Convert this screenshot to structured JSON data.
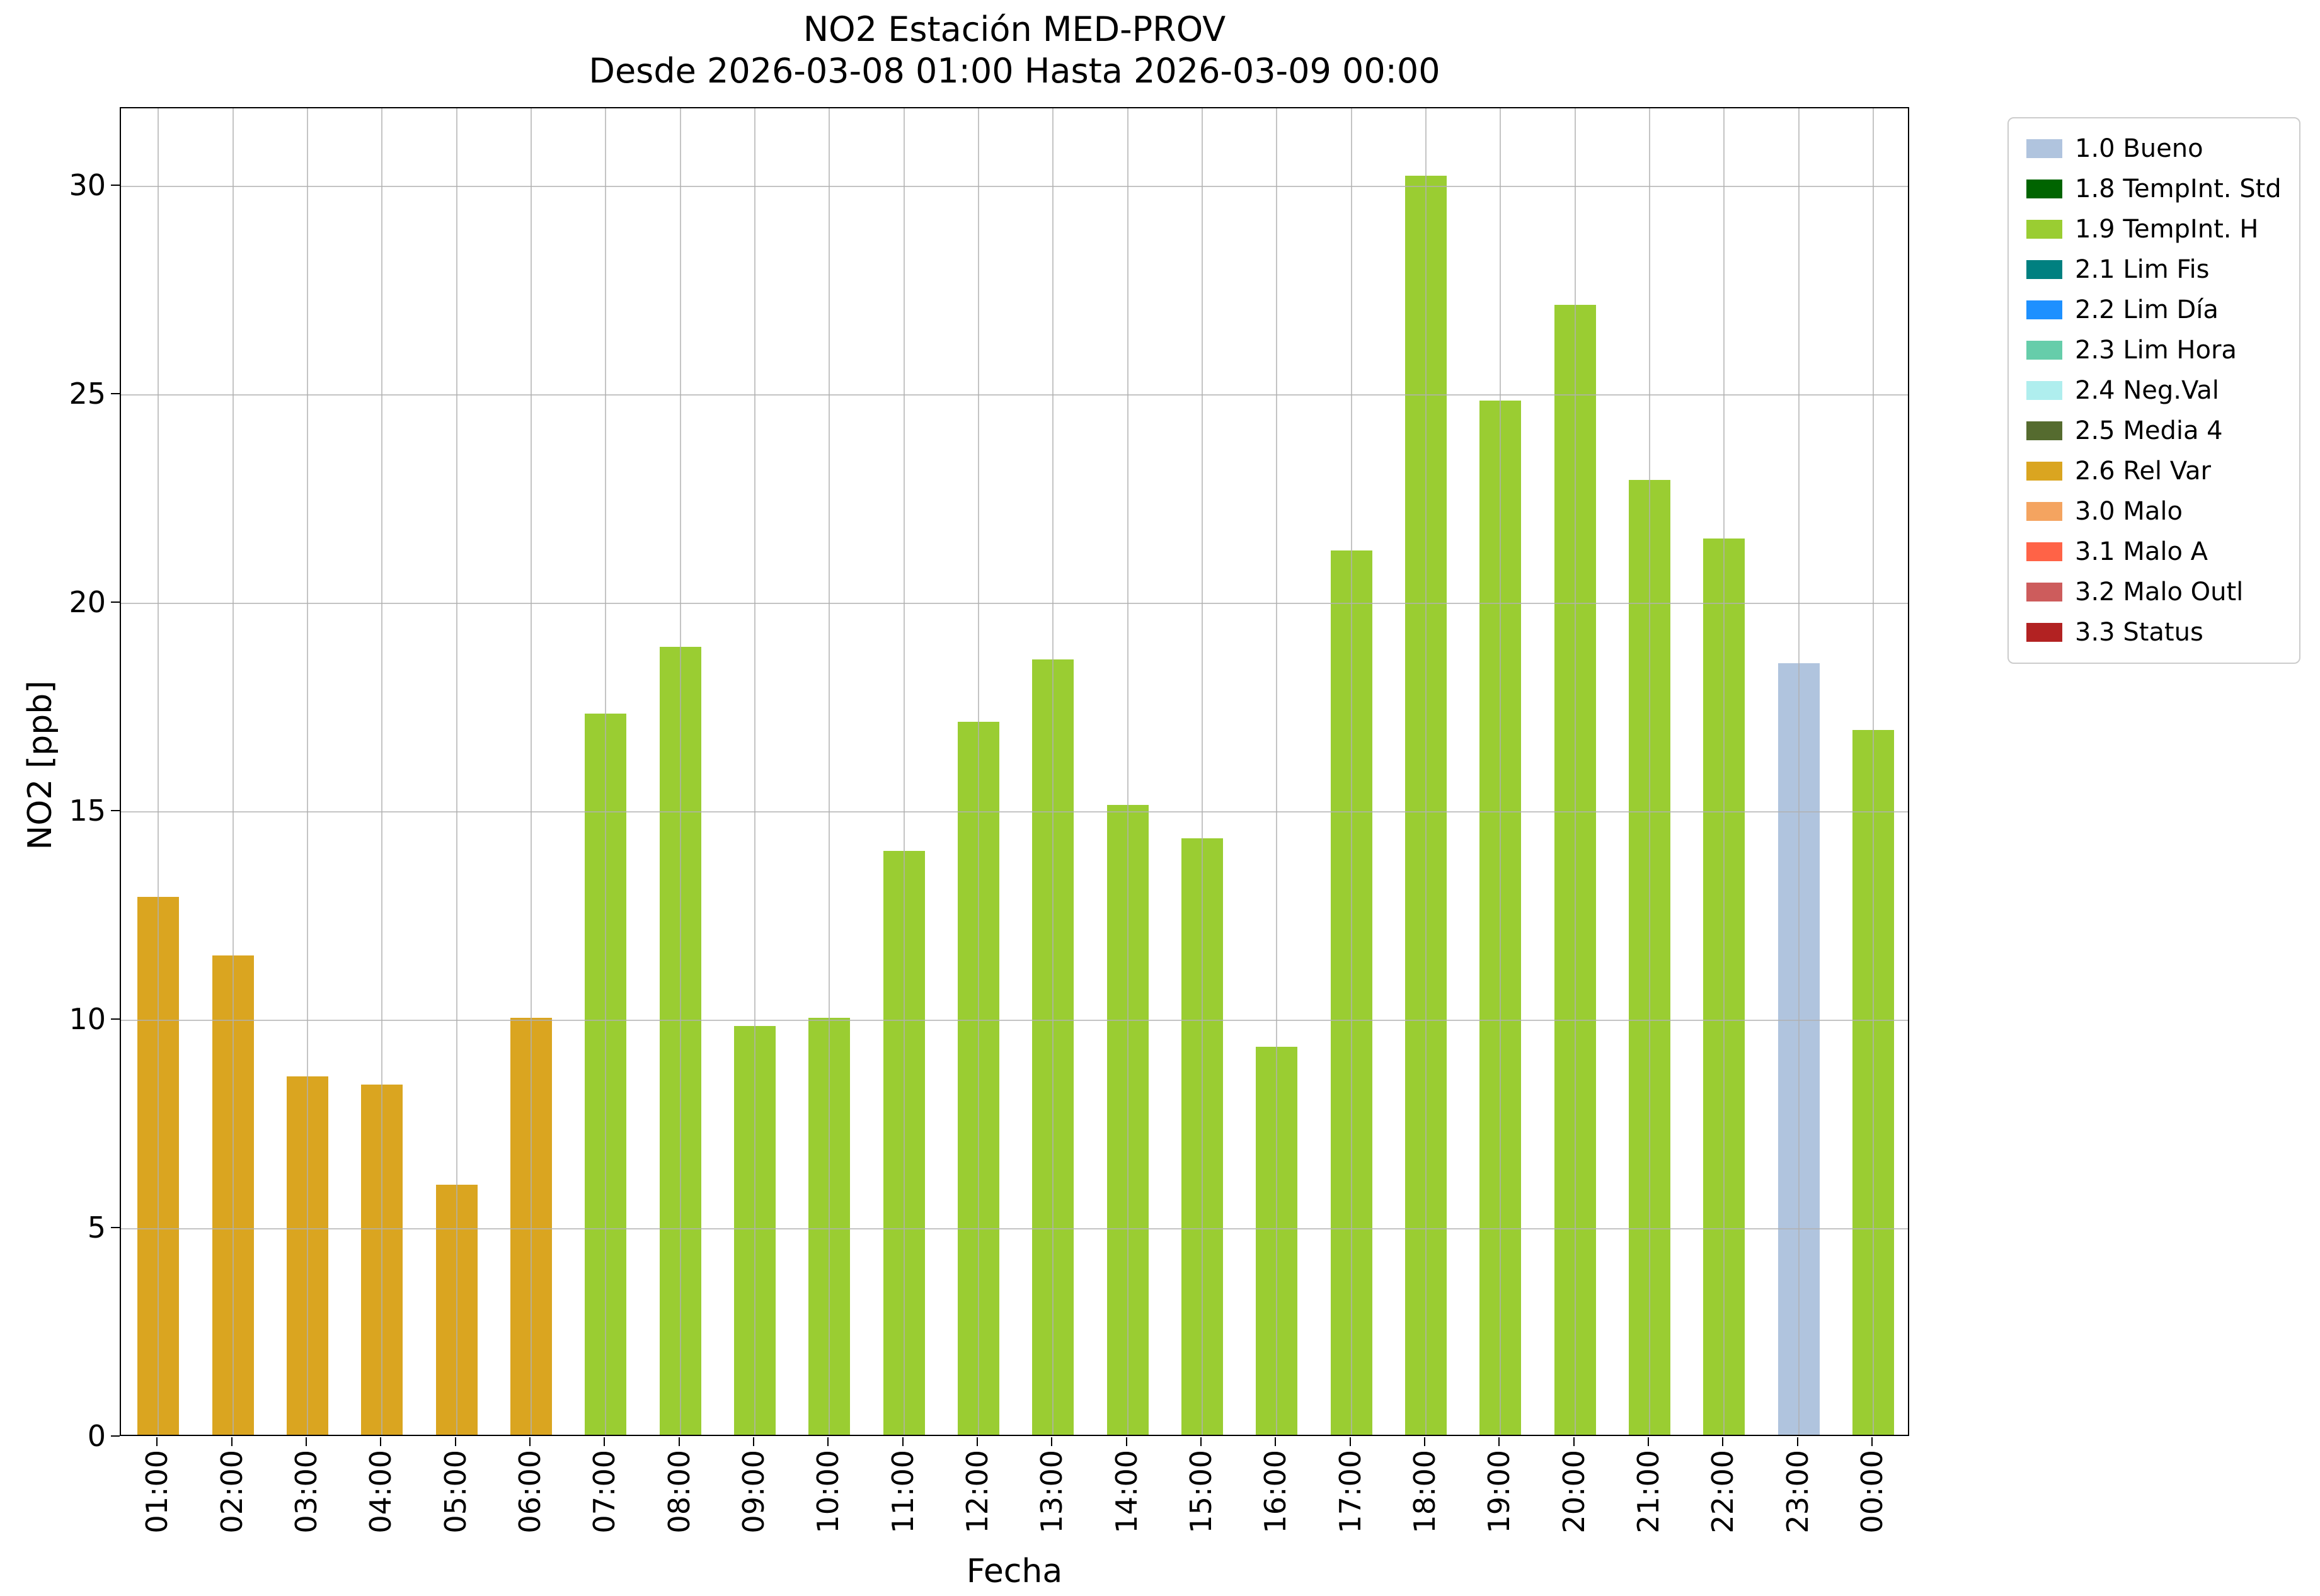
{
  "chart_data": {
    "type": "bar",
    "title": "NO2 Estación MED-PROV",
    "subtitle": "Desde 2026-03-08 01:00 Hasta 2026-03-09 00:00",
    "xlabel": "Fecha",
    "ylabel": "NO2 [ppb]",
    "ylim": [
      0,
      31.87
    ],
    "yticks": [
      0,
      5,
      10,
      15,
      20,
      25,
      30
    ],
    "grid": true,
    "legend_position": "outside-top-right",
    "categories": [
      "01:00",
      "02:00",
      "03:00",
      "04:00",
      "05:00",
      "06:00",
      "07:00",
      "08:00",
      "09:00",
      "10:00",
      "11:00",
      "12:00",
      "13:00",
      "14:00",
      "15:00",
      "16:00",
      "17:00",
      "18:00",
      "19:00",
      "20:00",
      "21:00",
      "22:00",
      "23:00",
      "00:00"
    ],
    "values": [
      12.9,
      11.5,
      8.6,
      8.4,
      6.0,
      10.0,
      17.3,
      18.9,
      9.8,
      10.0,
      14.0,
      17.1,
      18.6,
      15.1,
      14.3,
      9.3,
      21.2,
      30.2,
      24.8,
      27.1,
      22.9,
      21.5,
      18.5,
      16.9
    ],
    "bar_status": [
      "2.6 Rel Var",
      "2.6 Rel Var",
      "2.6 Rel Var",
      "2.6 Rel Var",
      "2.6 Rel Var",
      "2.6 Rel Var",
      "1.9 TempInt. H",
      "1.9 TempInt. H",
      "1.9 TempInt. H",
      "1.9 TempInt. H",
      "1.9 TempInt. H",
      "1.9 TempInt. H",
      "1.9 TempInt. H",
      "1.9 TempInt. H",
      "1.9 TempInt. H",
      "1.9 TempInt. H",
      "1.9 TempInt. H",
      "1.9 TempInt. H",
      "1.9 TempInt. H",
      "1.9 TempInt. H",
      "1.9 TempInt. H",
      "1.9 TempInt. H",
      "1.0 Bueno",
      "1.9 TempInt. H"
    ],
    "legend_entries": [
      {
        "label": "1.0 Bueno",
        "color": "#B0C4DE"
      },
      {
        "label": "1.8 TempInt. Std",
        "color": "#006400"
      },
      {
        "label": "1.9 TempInt. H",
        "color": "#9ACD32"
      },
      {
        "label": "2.1 Lim Fis",
        "color": "#008080"
      },
      {
        "label": "2.2 Lim Día",
        "color": "#1E90FF"
      },
      {
        "label": "2.3 Lim Hora",
        "color": "#66CDAA"
      },
      {
        "label": "2.4 Neg.Val",
        "color": "#AFEEEE"
      },
      {
        "label": "2.5 Media 4",
        "color": "#556B2F"
      },
      {
        "label": "2.6 Rel Var",
        "color": "#DAA520"
      },
      {
        "label": "3.0 Malo",
        "color": "#F4A460"
      },
      {
        "label": "3.1 Malo A",
        "color": "#FF6347"
      },
      {
        "label": "3.2 Malo Outl",
        "color": "#CD5C5C"
      },
      {
        "label": "3.3 Status",
        "color": "#B22222"
      }
    ]
  }
}
